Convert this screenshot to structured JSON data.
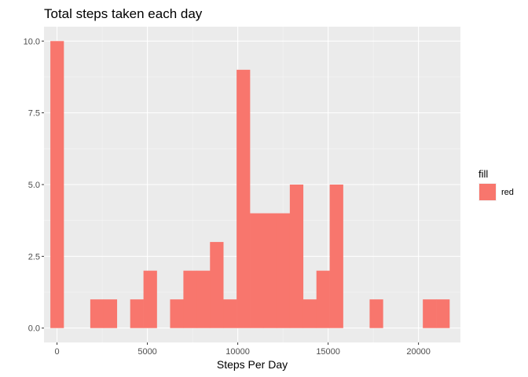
{
  "chart_data": {
    "type": "bar",
    "subtype": "histogram",
    "title": "Total steps taken each day",
    "xlabel": "Steps Per Day",
    "ylabel": "",
    "xlim": [
      -720,
      22320
    ],
    "ylim": [
      -0.5,
      10.5
    ],
    "x_ticks": [
      0,
      5000,
      10000,
      15000,
      20000
    ],
    "x_tick_labels": [
      "0",
      "5000",
      "10000",
      "15000",
      "20000"
    ],
    "y_ticks": [
      0,
      2.5,
      5,
      7.5,
      10
    ],
    "y_tick_labels": [
      "0.0",
      "2.5",
      "5.0",
      "7.5",
      "10.0"
    ],
    "bin_width": 736,
    "bin_centers": [
      0,
      736,
      1472,
      2208,
      2944,
      3680,
      4416,
      5152,
      5888,
      6624,
      7360,
      8096,
      8832,
      9568,
      10304,
      11040,
      11776,
      12512,
      13248,
      13984,
      14720,
      15456,
      16192,
      16928,
      17664,
      18400,
      19136,
      19872,
      20608,
      21344
    ],
    "counts": [
      10,
      0,
      0,
      1,
      1,
      0,
      1,
      2,
      0,
      1,
      2,
      2,
      3,
      1,
      9,
      4,
      4,
      4,
      5,
      1,
      2,
      5,
      0,
      0,
      1,
      0,
      0,
      0,
      1,
      1
    ],
    "grid": true,
    "legend": {
      "title": "fill",
      "position": "right",
      "entries": [
        {
          "label": "red",
          "color": "#F8766D"
        }
      ]
    },
    "colors": {
      "bar": "#F8766D",
      "panel": "#EBEBEB",
      "grid_major": "#FFFFFF",
      "text": "#4D4D4D"
    }
  }
}
